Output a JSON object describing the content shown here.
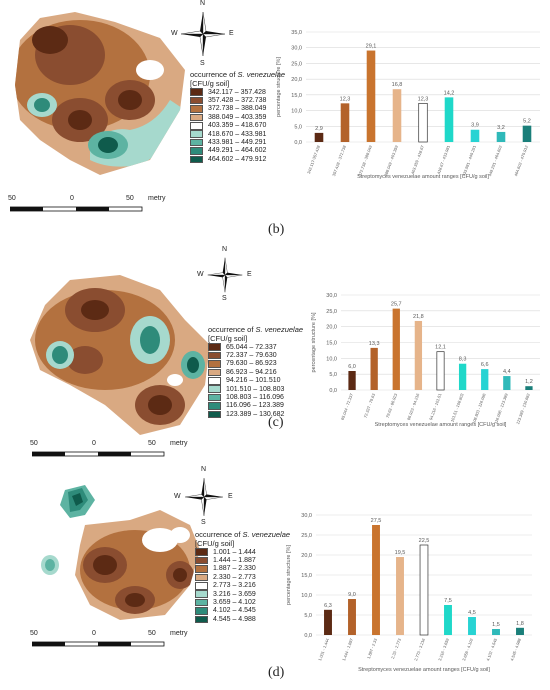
{
  "compass": {
    "n": "N",
    "e": "E",
    "s": "S",
    "w": "W"
  },
  "scale": {
    "left": "50",
    "mid": "0",
    "right": "50",
    "unit": "metry"
  },
  "panels": [
    {
      "label": "(b)",
      "legend": {
        "title_prefix": "occurrence of ",
        "title_species": "S. venezuelae",
        "title_unit": "[CFU/g soil]",
        "items": [
          "342.117 – 357.428",
          "357.428 – 372.738",
          "372.738 – 388.049",
          "388.049 – 403.359",
          "403.359 – 418.670",
          "418.670 – 433.981",
          "433.981 – 449.291",
          "449.291 – 464.602",
          "464.602 – 479.912"
        ]
      }
    },
    {
      "label": "(c)",
      "legend": {
        "title_prefix": "occurrence of ",
        "title_species": "S. venezuelae",
        "title_unit": "[CFU/g soil]",
        "items": [
          "65.044 – 72.337",
          "72.337 – 79.630",
          "79.630 – 86.923",
          "86.923 – 94.216",
          "94.216 – 101.510",
          "101.510 – 108.803",
          "108.803 – 116.096",
          "116.096 – 123.389",
          "123.389 – 130.682"
        ]
      }
    },
    {
      "label": "(d)",
      "legend": {
        "title_prefix": "occurrence of ",
        "title_species": "S. venezuelae",
        "title_unit": "[CFU/g soil]",
        "items": [
          "1.001 – 1.444",
          "1.444 – 1.887",
          "1.887 – 2.330",
          "2.330 – 2.773",
          "2.773 – 3.216",
          "3.216 – 3.659",
          "3.659 – 4.102",
          "4.102 – 4.545",
          "4.545 – 4.988"
        ]
      }
    }
  ],
  "colors": {
    "classes": [
      "#5c2a14",
      "#8a4d30",
      "#b3713f",
      "#d9a982",
      "#ffffff",
      "#a6d9cd",
      "#5db3a2",
      "#2e8b7a",
      "#0f5b4c"
    ],
    "bars": [
      "#5c2a14",
      "#b3622a",
      "#c9742e",
      "#e6b48a",
      "#ffffff",
      "#1fd8c9",
      "#27d3d3",
      "#2fb9b9",
      "#1a7f7a"
    ],
    "bar_edge_white": "#333333",
    "grid": "#d9d9d9",
    "axis_text": "#595959"
  },
  "chart_data": [
    {
      "type": "bar",
      "categories": [
        "342.117-357.428",
        "357.428 - 372.738",
        "372.738 - 388.049",
        "388.049 - 403.359",
        "403.359 - 418.67",
        "418.67 - 433.981",
        "433.981 - 449.291",
        "449.291 - 464.602",
        "464.602 - 479.912"
      ],
      "values": [
        2.9,
        12.3,
        29.1,
        16.8,
        12.3,
        14.2,
        3.9,
        3.2,
        5.2
      ],
      "value_labels": [
        "2,9",
        "12,3",
        "29,1",
        "16,8",
        "12,3",
        "14,2",
        "3,9",
        "3,2",
        "5,2"
      ],
      "ylim": [
        0,
        35
      ],
      "yticks": [
        0,
        5,
        10,
        15,
        20,
        25,
        30,
        35
      ],
      "ytick_labels": [
        "0,0",
        "5,0",
        "10,0",
        "15,0",
        "20,0",
        "25,0",
        "30,0",
        "35,0"
      ],
      "ylabel": "percentage structure [%]",
      "xlabel": "Streptomyces venezuelae amount ranges [CFU/g soil]",
      "grid": true
    },
    {
      "type": "bar",
      "categories": [
        "65.044 - 72.337",
        "72.337 - 79.63",
        "79.63 - 86.923",
        "86.923 - 94.216",
        "94.216 - 101.51",
        "101.51 - 108.803",
        "108.803 - 116.096",
        "116.096 - 123.389",
        "123.389 - 130.682"
      ],
      "values": [
        6.0,
        13.3,
        25.7,
        21.8,
        12.1,
        8.3,
        6.6,
        4.4,
        1.2
      ],
      "value_labels": [
        "6,0",
        "13,3",
        "25,7",
        "21,8",
        "12,1",
        "8,3",
        "6,6",
        "4,4",
        "1,2"
      ],
      "ylim": [
        0,
        30
      ],
      "yticks": [
        0,
        5,
        10,
        15,
        20,
        25,
        30
      ],
      "ytick_labels": [
        "0,0",
        "5,0",
        "10,0",
        "15,0",
        "20,0",
        "25,0",
        "30,0"
      ],
      "ylabel": "percentage structure [%]",
      "xlabel": "Streptomyces venezuelae amount ranges [CFU/g soil]",
      "grid": true
    },
    {
      "type": "bar",
      "categories": [
        "1.001 - 1.444",
        "1.444 - 1.887",
        "1.887 - 2.33",
        "2.33 - 2.773",
        "2.773 - 3.216",
        "3.216 - 3.659",
        "3.659 - 4.102",
        "4.102 - 4.545",
        "4.545 - 4.988"
      ],
      "values": [
        6.3,
        9.0,
        27.5,
        19.5,
        22.5,
        7.5,
        4.5,
        1.5,
        1.8
      ],
      "value_labels": [
        "6,3",
        "9,0",
        "27,5",
        "19,5",
        "22,5",
        "7,5",
        "4,5",
        "1,5",
        "1,8"
      ],
      "ylim": [
        0,
        30
      ],
      "yticks": [
        0,
        5,
        10,
        15,
        20,
        25,
        30
      ],
      "ytick_labels": [
        "0,0",
        "5,0",
        "10,0",
        "15,0",
        "20,0",
        "25,0",
        "30,0"
      ],
      "ylabel": "percentage structure [%]",
      "xlabel": "Streptomyces venezuelae amount ranges [CFU/g soil]",
      "grid": true
    }
  ]
}
